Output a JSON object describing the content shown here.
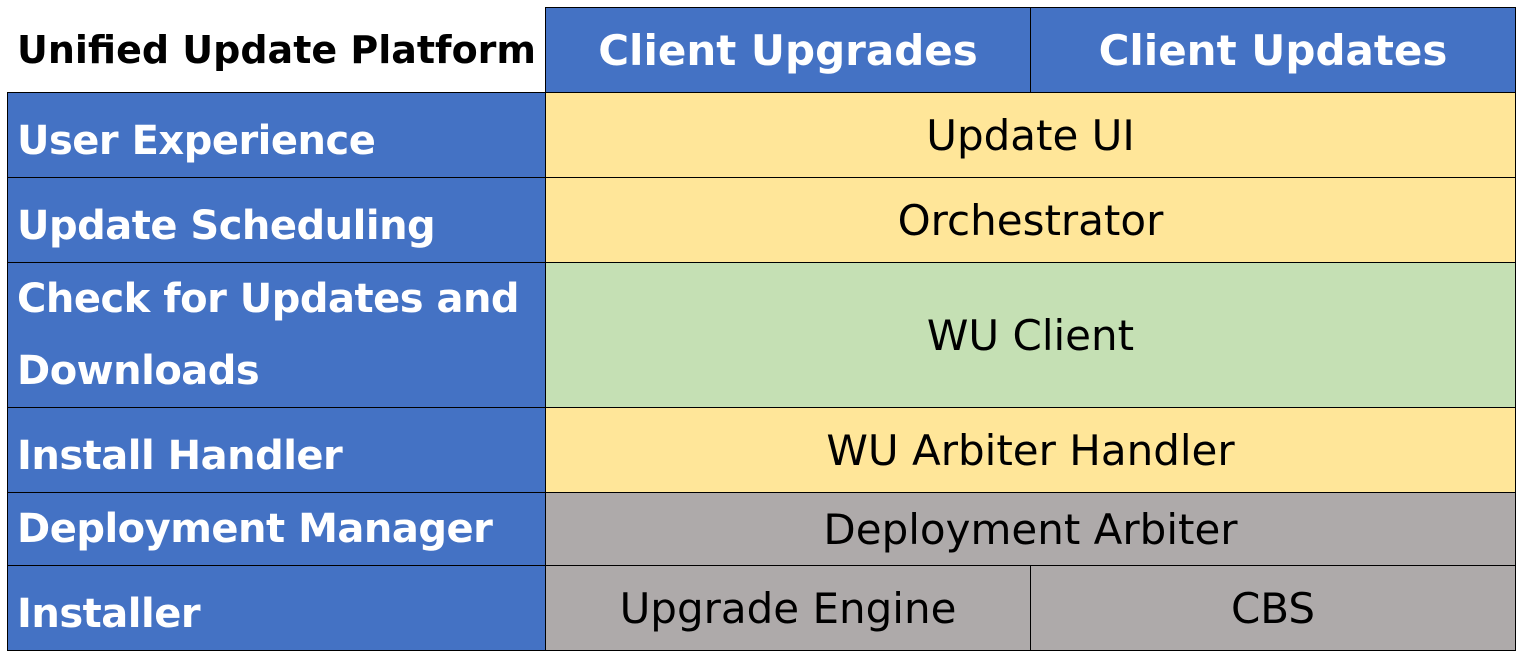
{
  "title": "Unified Update Platform",
  "columns": [
    "Client Upgrades",
    "Client Updates"
  ],
  "rows": [
    {
      "label": "User Experience",
      "value": "Update UI"
    },
    {
      "label": "Update Scheduling",
      "value": "Orchestrator"
    },
    {
      "label": "Check for Updates and Downloads",
      "value": "WU Client"
    },
    {
      "label": "Install Handler",
      "value": "WU Arbiter Handler"
    },
    {
      "label": "Deployment Manager",
      "value": "Deployment Arbiter"
    },
    {
      "label": "Installer",
      "values": [
        "Upgrade Engine",
        "CBS"
      ]
    }
  ],
  "colors": {
    "header": "#4472C4",
    "orange_layer": "#FFE699",
    "green_layer": "#C5E0B4",
    "gray_layer": "#AEAAAA"
  }
}
